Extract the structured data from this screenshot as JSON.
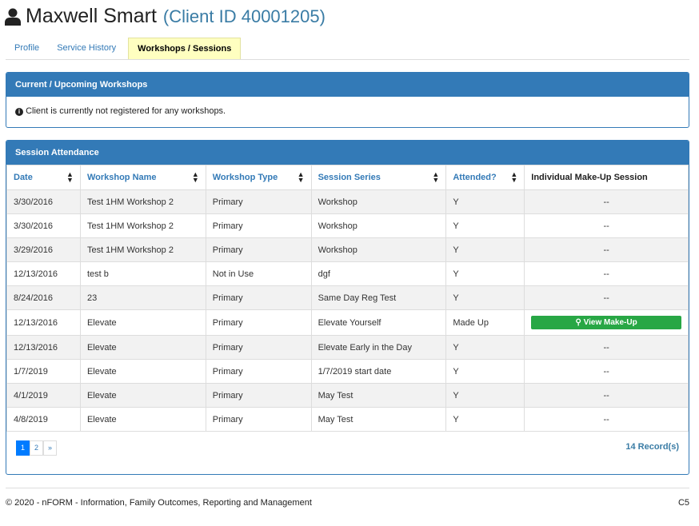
{
  "header": {
    "name": "Maxwell Smart",
    "client_id": "(Client ID 40001205)"
  },
  "tabs": [
    {
      "label": "Profile"
    },
    {
      "label": "Service History"
    },
    {
      "label": "Workshops / Sessions",
      "active": true
    }
  ],
  "current": {
    "title": "Current / Upcoming Workshops",
    "message": "Client is currently not registered for any workshops."
  },
  "attendance": {
    "title": "Session Attendance",
    "columns": [
      "Date",
      "Workshop Name",
      "Workshop Type",
      "Session Series",
      "Attended?",
      "Individual Make-Up Session"
    ],
    "rows": [
      [
        "3/30/2016",
        "Test 1HM Workshop 2",
        "Primary",
        "Workshop",
        "Y",
        "--"
      ],
      [
        "3/30/2016",
        "Test 1HM Workshop 2",
        "Primary",
        "Workshop",
        "Y",
        "--"
      ],
      [
        "3/29/2016",
        "Test 1HM Workshop 2",
        "Primary",
        "Workshop",
        "Y",
        "--"
      ],
      [
        "12/13/2016",
        "test b",
        "Not in Use",
        "dgf",
        "Y",
        "--"
      ],
      [
        "8/24/2016",
        "23",
        "Primary",
        "Same Day Reg Test",
        "Y",
        "--"
      ],
      [
        "12/13/2016",
        "Elevate",
        "Primary",
        "Elevate Yourself",
        "Made Up",
        "View Make-Up"
      ],
      [
        "12/13/2016",
        "Elevate",
        "Primary",
        "Elevate Early in the Day",
        "Y",
        "--"
      ],
      [
        "1/7/2019",
        "Elevate",
        "Primary",
        "1/7/2019 start date",
        "Y",
        "--"
      ],
      [
        "4/1/2019",
        "Elevate",
        "Primary",
        "May Test",
        "Y",
        "--"
      ],
      [
        "4/8/2019",
        "Elevate",
        "Primary",
        "May Test",
        "Y",
        "--"
      ]
    ],
    "pages": [
      "1",
      "2",
      "»"
    ],
    "records": "14 Record(s)"
  },
  "footer": {
    "copyright": "© 2020 - nFORM - Information, Family Outcomes, Reporting and Management",
    "code": "C5"
  },
  "colors": {
    "primary": "#337ab7",
    "success": "#28a745",
    "active_tab": "#ffffc0"
  }
}
